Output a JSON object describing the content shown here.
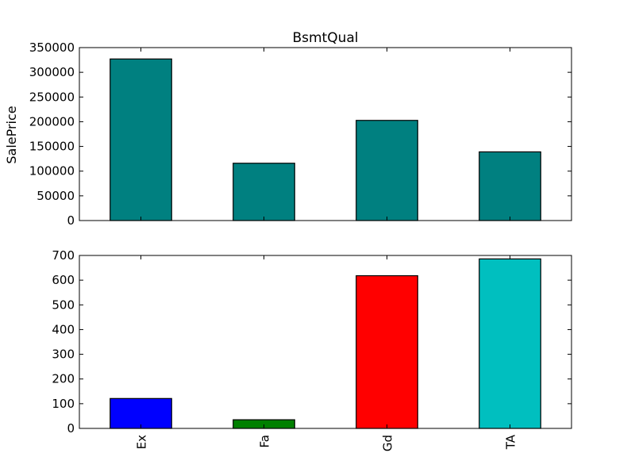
{
  "chart_data": [
    {
      "type": "bar",
      "title": "BsmtQual",
      "xlabel": "",
      "ylabel": "SalePrice",
      "categories": [
        "Ex",
        "Fa",
        "Gd",
        "TA"
      ],
      "values": [
        327000,
        116000,
        202700,
        139000
      ],
      "ylim": [
        0,
        350000
      ],
      "yticks": [
        "0",
        "50000",
        "100000",
        "150000",
        "200000",
        "250000",
        "300000",
        "350000"
      ],
      "bar_colors": [
        "#008080",
        "#008080",
        "#008080",
        "#008080"
      ],
      "grid": false,
      "legend": "none"
    },
    {
      "type": "bar",
      "title": "",
      "xlabel": "",
      "ylabel": "",
      "categories": [
        "Ex",
        "Fa",
        "Gd",
        "TA"
      ],
      "values": [
        121,
        35,
        618,
        686
      ],
      "ylim": [
        0,
        700
      ],
      "yticks": [
        "0",
        "100",
        "200",
        "300",
        "400",
        "500",
        "600",
        "700"
      ],
      "bar_colors": [
        "#0000ff",
        "#008000",
        "#ff0000",
        "#00bfbf"
      ],
      "grid": false,
      "legend": "none"
    }
  ]
}
